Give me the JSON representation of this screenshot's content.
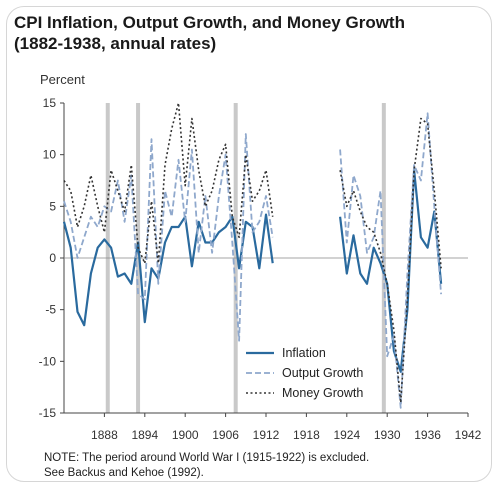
{
  "chart_data": {
    "type": "line",
    "title": "CPI Inflation, Output Growth, and Money Growth",
    "subtitle": "(1882-1938, annual rates)",
    "ylabel": "Percent",
    "xlabel": "",
    "xlim": [
      1882,
      1942
    ],
    "ylim": [
      -15,
      15
    ],
    "x_ticks": [
      1888,
      1894,
      1900,
      1906,
      1912,
      1918,
      1924,
      1930,
      1936,
      1942
    ],
    "y_ticks": [
      15,
      10,
      5,
      0,
      -5,
      -10,
      -15
    ],
    "x_tick_labels": [
      "1888",
      "1894",
      "1900",
      "1906",
      "1912",
      "1918",
      "1924",
      "1930",
      "1936",
      "1942"
    ],
    "y_tick_labels": [
      "15",
      "10",
      "5",
      "0",
      "-5",
      "-10",
      "-15"
    ],
    "recession_bars": [
      1888.5,
      1893,
      1907.5,
      1929.5
    ],
    "legend_position": "lower-right",
    "series": [
      {
        "name": "Inflation",
        "color": "#2a6a9e",
        "style": "solid",
        "segments": [
          [
            [
              1882,
              3.5
            ],
            [
              1883,
              1.0
            ],
            [
              1884,
              -5.2
            ],
            [
              1885,
              -6.5
            ],
            [
              1886,
              -1.5
            ],
            [
              1887,
              1.0
            ],
            [
              1888,
              1.8
            ],
            [
              1889,
              1.0
            ],
            [
              1890,
              -1.8
            ],
            [
              1891,
              -1.5
            ],
            [
              1892,
              -2.5
            ],
            [
              1893,
              1.5
            ],
            [
              1894,
              -6.2
            ],
            [
              1895,
              -1.0
            ],
            [
              1896,
              -2.0
            ],
            [
              1897,
              1.5
            ],
            [
              1898,
              3.0
            ],
            [
              1899,
              3.0
            ],
            [
              1900,
              4.0
            ],
            [
              1901,
              -0.8
            ],
            [
              1902,
              3.5
            ],
            [
              1903,
              1.5
            ],
            [
              1904,
              1.5
            ],
            [
              1905,
              2.5
            ],
            [
              1906,
              3.0
            ],
            [
              1907,
              4.0
            ],
            [
              1908,
              -1.0
            ],
            [
              1909,
              3.5
            ],
            [
              1910,
              3.0
            ],
            [
              1911,
              -1.0
            ],
            [
              1912,
              4.2
            ],
            [
              1913,
              -0.5
            ]
          ],
          [
            [
              1923,
              4.0
            ],
            [
              1924,
              -1.5
            ],
            [
              1925,
              2.2
            ],
            [
              1926,
              -1.5
            ],
            [
              1927,
              -2.5
            ],
            [
              1928,
              1.0
            ],
            [
              1929,
              -0.5
            ],
            [
              1930,
              -2.5
            ],
            [
              1931,
              -9.0
            ],
            [
              1932,
              -11.0
            ],
            [
              1933,
              -5.0
            ],
            [
              1934,
              8.5
            ],
            [
              1935,
              2.0
            ],
            [
              1936,
              1.0
            ],
            [
              1937,
              4.5
            ],
            [
              1938,
              -2.5
            ]
          ]
        ]
      },
      {
        "name": "Output Growth",
        "color": "#8fa8cc",
        "style": "dashed",
        "segments": [
          [
            [
              1882,
              5.5
            ],
            [
              1883,
              3.5
            ],
            [
              1884,
              0.0
            ],
            [
              1885,
              2.0
            ],
            [
              1886,
              4.0
            ],
            [
              1887,
              3.0
            ],
            [
              1888,
              5.0
            ],
            [
              1889,
              4.5
            ],
            [
              1890,
              7.5
            ],
            [
              1891,
              3.5
            ],
            [
              1892,
              8.0
            ],
            [
              1893,
              -3.5
            ],
            [
              1894,
              -4.0
            ],
            [
              1895,
              11.5
            ],
            [
              1896,
              -2.5
            ],
            [
              1897,
              6.5
            ],
            [
              1898,
              4.0
            ],
            [
              1899,
              9.5
            ],
            [
              1900,
              3.5
            ],
            [
              1901,
              10.5
            ],
            [
              1902,
              0.5
            ],
            [
              1903,
              6.0
            ],
            [
              1904,
              0.5
            ],
            [
              1905,
              6.0
            ],
            [
              1906,
              10.0
            ],
            [
              1907,
              1.5
            ],
            [
              1908,
              -8.0
            ],
            [
              1909,
              12.0
            ],
            [
              1910,
              2.5
            ],
            [
              1911,
              3.5
            ],
            [
              1912,
              6.0
            ],
            [
              1913,
              2.0
            ]
          ],
          [
            [
              1923,
              10.5
            ],
            [
              1924,
              1.5
            ],
            [
              1925,
              8.0
            ],
            [
              1926,
              6.0
            ],
            [
              1927,
              0.5
            ],
            [
              1928,
              2.0
            ],
            [
              1929,
              6.5
            ],
            [
              1930,
              -9.5
            ],
            [
              1931,
              -7.5
            ],
            [
              1932,
              -14.5
            ],
            [
              1933,
              -1.5
            ],
            [
              1934,
              9.0
            ],
            [
              1935,
              7.5
            ],
            [
              1936,
              14.0
            ],
            [
              1937,
              5.0
            ],
            [
              1938,
              -3.5
            ]
          ]
        ]
      },
      {
        "name": "Money Growth",
        "color": "#333333",
        "style": "dotted",
        "segments": [
          [
            [
              1882,
              7.5
            ],
            [
              1883,
              6.5
            ],
            [
              1884,
              3.0
            ],
            [
              1885,
              5.0
            ],
            [
              1886,
              8.0
            ],
            [
              1887,
              5.0
            ],
            [
              1888,
              2.5
            ],
            [
              1889,
              8.5
            ],
            [
              1890,
              6.5
            ],
            [
              1891,
              4.5
            ],
            [
              1892,
              9.0
            ],
            [
              1893,
              1.0
            ],
            [
              1894,
              -0.5
            ],
            [
              1895,
              5.5
            ],
            [
              1896,
              -0.5
            ],
            [
              1897,
              9.0
            ],
            [
              1898,
              12.5
            ],
            [
              1899,
              15.0
            ],
            [
              1900,
              7.0
            ],
            [
              1901,
              13.5
            ],
            [
              1902,
              8.5
            ],
            [
              1903,
              5.0
            ],
            [
              1904,
              6.5
            ],
            [
              1905,
              9.5
            ],
            [
              1906,
              11.0
            ],
            [
              1907,
              4.0
            ],
            [
              1908,
              2.0
            ],
            [
              1909,
              10.0
            ],
            [
              1910,
              5.5
            ],
            [
              1911,
              6.5
            ],
            [
              1912,
              8.5
            ],
            [
              1913,
              4.0
            ]
          ],
          [
            [
              1923,
              8.5
            ],
            [
              1924,
              5.0
            ],
            [
              1925,
              6.5
            ],
            [
              1926,
              4.5
            ],
            [
              1927,
              3.0
            ],
            [
              1928,
              2.5
            ],
            [
              1929,
              0.5
            ],
            [
              1930,
              -2.5
            ],
            [
              1931,
              -7.0
            ],
            [
              1932,
              -14.0
            ],
            [
              1933,
              -4.0
            ],
            [
              1934,
              8.5
            ],
            [
              1935,
              13.5
            ],
            [
              1936,
              13.0
            ],
            [
              1937,
              6.5
            ],
            [
              1938,
              -1.0
            ]
          ]
        ]
      }
    ]
  },
  "note": {
    "line1": "NOTE: The period around World War I (1915-1922) is excluded.",
    "line2": "See Backus and  Kehoe (1992)."
  }
}
